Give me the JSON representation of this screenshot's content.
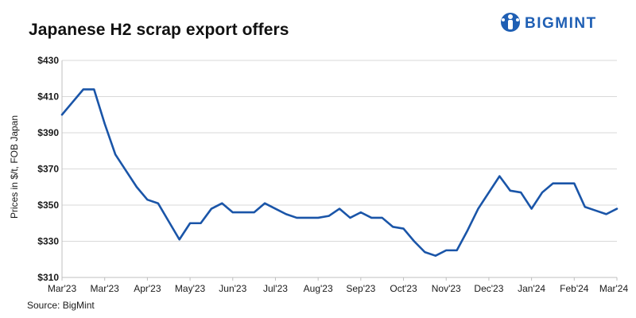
{
  "brand": {
    "name": "BIGMINT",
    "color": "#1f5fb4",
    "icon": "bigmint-logo-icon"
  },
  "source_note": "Source: BigMint",
  "chart_data": {
    "type": "line",
    "title": "Japanese H2 scrap export offers",
    "xlabel": "",
    "ylabel": "Prices in $/t, FOB Japan",
    "ylim": [
      310,
      430
    ],
    "yticks": [
      310,
      330,
      350,
      370,
      390,
      410,
      430
    ],
    "ytick_labels": [
      "$310",
      "$330",
      "$350",
      "$370",
      "$390",
      "$410",
      "$430"
    ],
    "xtick_labels": [
      "Mar'23",
      "Mar'23",
      "Apr'23",
      "May'23",
      "Jun'23",
      "Jul'23",
      "Aug'23",
      "Sep'23",
      "Oct'23",
      "Nov'23",
      "Dec'23",
      "Jan'24",
      "Feb'24",
      "Mar'24"
    ],
    "grid": true,
    "line_color": "#1a55a8",
    "series": [
      {
        "name": "",
        "values": [
          400,
          407,
          414,
          414,
          395,
          378,
          369,
          360,
          353,
          351,
          341,
          331,
          340,
          340,
          348,
          351,
          346,
          346,
          346,
          351,
          348,
          345,
          343,
          343,
          343,
          344,
          348,
          343,
          346,
          343,
          343,
          338,
          337,
          330,
          324,
          322,
          325,
          325,
          336,
          348,
          357,
          366,
          358,
          357,
          348,
          357,
          362,
          362,
          362,
          349,
          347,
          345,
          348
        ]
      }
    ]
  }
}
